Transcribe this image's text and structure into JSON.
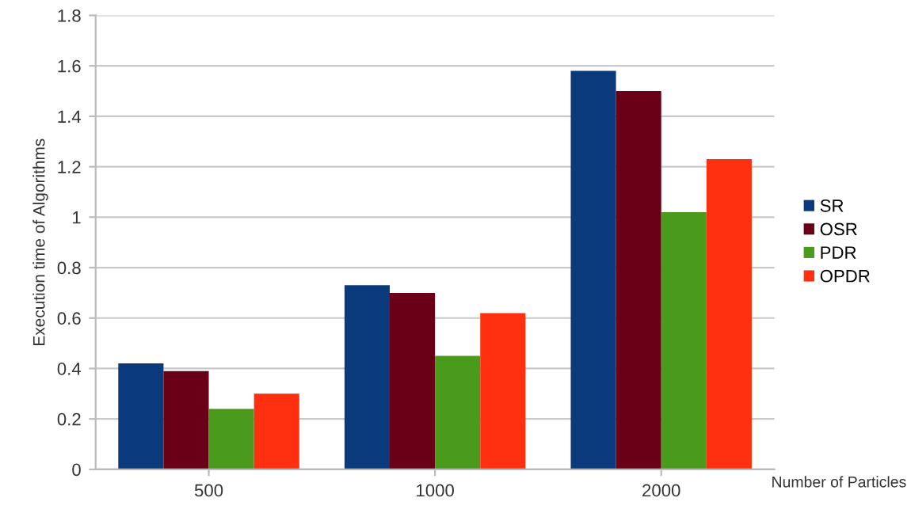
{
  "chart_data": {
    "type": "bar",
    "xlabel": "Number of Particles",
    "ylabel": "Execution time of Algorithms",
    "categories": [
      "500",
      "1000",
      "2000"
    ],
    "series": [
      {
        "name": "SR",
        "color": "#0b3a7c",
        "values": [
          0.42,
          0.73,
          1.58
        ]
      },
      {
        "name": "OSR",
        "color": "#6a0018",
        "values": [
          0.39,
          0.7,
          1.5
        ]
      },
      {
        "name": "PDR",
        "color": "#4a9a1c",
        "values": [
          0.24,
          0.45,
          1.02
        ]
      },
      {
        "name": "OPDR",
        "color": "#ff3010",
        "values": [
          0.3,
          0.62,
          1.23
        ]
      }
    ],
    "ylim": [
      0,
      1.8
    ],
    "yticks": [
      0,
      0.2,
      0.4,
      0.6,
      0.8,
      1,
      1.2,
      1.4,
      1.6,
      1.8
    ],
    "grid": "y",
    "legend": "right"
  }
}
